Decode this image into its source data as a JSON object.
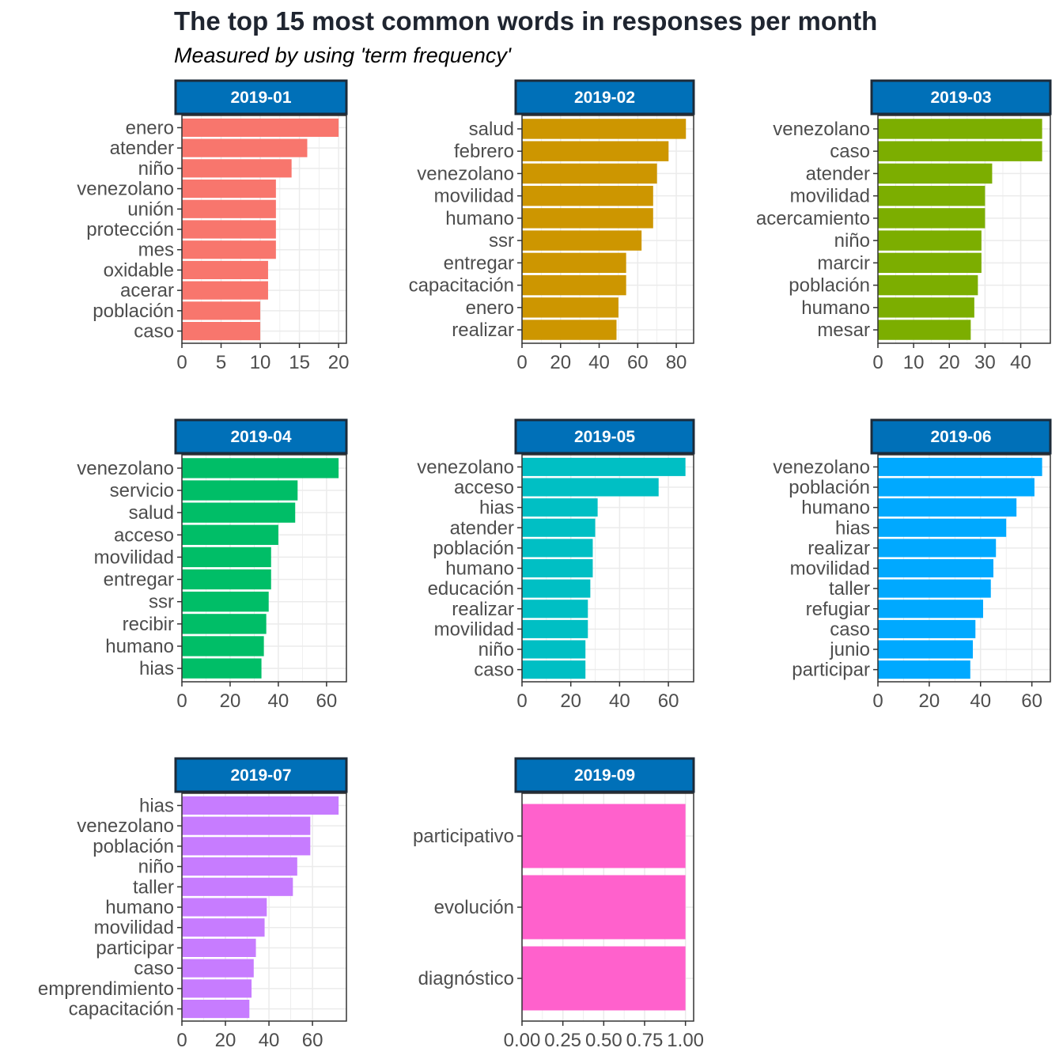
{
  "title": "The top 15 most common words in responses per month",
  "subtitle": "Measured by using 'term frequency'",
  "colors": {
    "strip_fill": "#0070b8",
    "strip_border": "#1d2b3a",
    "strip_text": "#ffffff",
    "grid": "#ebebeb",
    "axis_text": "#4d4d4d"
  },
  "chart_data": [
    {
      "type": "bar",
      "orientation": "horizontal",
      "facet": "2019-01",
      "color": "#f8766d",
      "categories": [
        "enero",
        "atender",
        "niño",
        "venezolano",
        "unión",
        "protección",
        "mes",
        "oxidable",
        "acerar",
        "población",
        "caso"
      ],
      "values": [
        20,
        16,
        14,
        12,
        12,
        12,
        12,
        11,
        11,
        10,
        10
      ],
      "xlim": [
        0,
        21
      ],
      "xticks": [
        0,
        5,
        10,
        15,
        20
      ],
      "xtick_labels": [
        "0",
        "5",
        "10",
        "15",
        "20"
      ]
    },
    {
      "type": "bar",
      "orientation": "horizontal",
      "facet": "2019-02",
      "color": "#cd9600",
      "categories": [
        "salud",
        "febrero",
        "venezolano",
        "movilidad",
        "humano",
        "ssr",
        "entregar",
        "capacitación",
        "enero",
        "realizar"
      ],
      "values": [
        85,
        76,
        70,
        68,
        68,
        62,
        54,
        54,
        50,
        49
      ],
      "xlim": [
        0,
        89
      ],
      "xticks": [
        0,
        20,
        40,
        60,
        80
      ],
      "xtick_labels": [
        "0",
        "20",
        "40",
        "60",
        "80"
      ]
    },
    {
      "type": "bar",
      "orientation": "horizontal",
      "facet": "2019-03",
      "color": "#7cae00",
      "categories": [
        "venezolano",
        "caso",
        "atender",
        "movilidad",
        "acercamiento",
        "niño",
        "marcir",
        "población",
        "humano",
        "mesar"
      ],
      "values": [
        46,
        46,
        32,
        30,
        30,
        29,
        29,
        28,
        27,
        26
      ],
      "xlim": [
        0,
        48.3
      ],
      "xticks": [
        0,
        10,
        20,
        30,
        40
      ],
      "xtick_labels": [
        "0",
        "10",
        "20",
        "30",
        "40"
      ]
    },
    {
      "type": "bar",
      "orientation": "horizontal",
      "facet": "2019-04",
      "color": "#00be67",
      "categories": [
        "venezolano",
        "servicio",
        "salud",
        "acceso",
        "movilidad",
        "entregar",
        "ssr",
        "recibir",
        "humano",
        "hias"
      ],
      "values": [
        65,
        48,
        47,
        40,
        37,
        37,
        36,
        35,
        34,
        33
      ],
      "xlim": [
        0,
        68.25
      ],
      "xticks": [
        0,
        20,
        40,
        60
      ],
      "xtick_labels": [
        "0",
        "20",
        "40",
        "60"
      ]
    },
    {
      "type": "bar",
      "orientation": "horizontal",
      "facet": "2019-05",
      "color": "#00bfc4",
      "categories": [
        "venezolano",
        "acceso",
        "hias",
        "atender",
        "población",
        "humano",
        "educación",
        "realizar",
        "movilidad",
        "niño",
        "caso"
      ],
      "values": [
        67,
        56,
        31,
        30,
        29,
        29,
        28,
        27,
        27,
        26,
        26
      ],
      "xlim": [
        0,
        70.35
      ],
      "xticks": [
        0,
        20,
        40,
        60
      ],
      "xtick_labels": [
        "0",
        "20",
        "40",
        "60"
      ]
    },
    {
      "type": "bar",
      "orientation": "horizontal",
      "facet": "2019-06",
      "color": "#00a9ff",
      "categories": [
        "venezolano",
        "población",
        "humano",
        "hias",
        "realizar",
        "movilidad",
        "taller",
        "refugiar",
        "caso",
        "junio",
        "participar"
      ],
      "values": [
        64,
        61,
        54,
        50,
        46,
        45,
        44,
        41,
        38,
        37,
        36
      ],
      "xlim": [
        0,
        67.2
      ],
      "xticks": [
        0,
        20,
        40,
        60
      ],
      "xtick_labels": [
        "0",
        "20",
        "40",
        "60"
      ]
    },
    {
      "type": "bar",
      "orientation": "horizontal",
      "facet": "2019-07",
      "color": "#c77cff",
      "categories": [
        "hias",
        "venezolano",
        "población",
        "niño",
        "taller",
        "humano",
        "movilidad",
        "participar",
        "caso",
        "emprendimiento",
        "capacitación"
      ],
      "values": [
        72,
        59,
        59,
        53,
        51,
        39,
        38,
        34,
        33,
        32,
        31
      ],
      "xlim": [
        0,
        75.6
      ],
      "xticks": [
        0,
        20,
        40,
        60
      ],
      "xtick_labels": [
        "0",
        "20",
        "40",
        "60"
      ]
    },
    {
      "type": "bar",
      "orientation": "horizontal",
      "facet": "2019-09",
      "color": "#ff61cc",
      "categories": [
        "participativo",
        "evolución",
        "diagnóstico"
      ],
      "values": [
        1,
        1,
        1
      ],
      "xlim": [
        0,
        1.05
      ],
      "xticks": [
        0,
        0.25,
        0.5,
        0.75,
        1
      ],
      "xtick_labels": [
        "0.00",
        "0.25",
        "0.50",
        "0.75",
        "1.00"
      ]
    }
  ]
}
